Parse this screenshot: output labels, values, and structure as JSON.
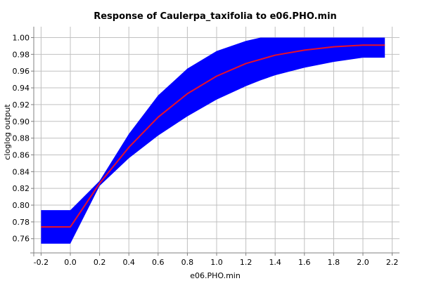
{
  "chart_data": {
    "type": "line",
    "title": "Response of Caulerpa_taxifolia to e06.PHO.min",
    "xlabel": "e06.PHO.min",
    "ylabel": "cloglog output",
    "xlim": [
      -0.25,
      2.25
    ],
    "ylim": [
      0.743,
      1.013
    ],
    "x_ticks": [
      -0.2,
      0.0,
      0.2,
      0.4,
      0.6,
      0.8,
      1.0,
      1.2,
      1.4,
      1.6,
      1.8,
      2.0,
      2.2
    ],
    "x_tick_labels": [
      "-0.2",
      "0.0",
      "0.2",
      "0.4",
      "0.6",
      "0.8",
      "1.0",
      "1.2",
      "1.4",
      "1.6",
      "1.8",
      "2.0",
      "2.2"
    ],
    "y_ticks": [
      0.76,
      0.78,
      0.8,
      0.82,
      0.84,
      0.86,
      0.88,
      0.9,
      0.92,
      0.94,
      0.96,
      0.98,
      1.0
    ],
    "y_tick_labels": [
      "0.76",
      "0.78",
      "0.80",
      "0.82",
      "0.84",
      "0.86",
      "0.88",
      "0.90",
      "0.92",
      "0.94",
      "0.96",
      "0.98",
      "1.00"
    ],
    "grid": true,
    "series": [
      {
        "role": "mean",
        "color": "#e8102a",
        "x": [
          -0.2,
          0.0,
          0.2,
          0.4,
          0.6,
          0.8,
          1.0,
          1.2,
          1.4,
          1.6,
          1.8,
          2.0,
          2.15
        ],
        "y": [
          0.774,
          0.774,
          0.826,
          0.869,
          0.905,
          0.933,
          0.954,
          0.969,
          0.979,
          0.985,
          0.989,
          0.991,
          0.991
        ]
      },
      {
        "role": "band",
        "color": "#0000ff",
        "x": [
          -0.2,
          0.0,
          0.2,
          0.4,
          0.6,
          0.8,
          1.0,
          1.2,
          1.3,
          1.4,
          1.6,
          1.8,
          2.0,
          2.15
        ],
        "upper": [
          0.794,
          0.794,
          0.829,
          0.885,
          0.931,
          0.963,
          0.984,
          0.996,
          1.0,
          1.0,
          1.0,
          1.0,
          1.0,
          1.0
        ],
        "lower": [
          0.754,
          0.754,
          0.823,
          0.856,
          0.883,
          0.906,
          0.926,
          0.942,
          0.949,
          0.955,
          0.964,
          0.971,
          0.976,
          0.976
        ]
      }
    ]
  }
}
